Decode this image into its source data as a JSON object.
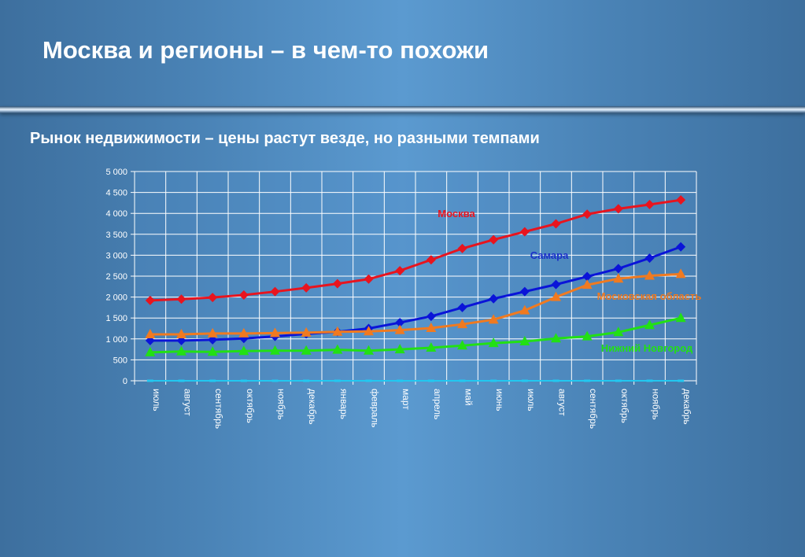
{
  "slide": {
    "title": "Москва и регионы – в чем-то похожи",
    "subtitle": "Рынок недвижимости – цены растут везде, но разными темпами"
  },
  "chart_data": {
    "type": "line",
    "categories": [
      "июль",
      "август",
      "сентябрь",
      "октябрь",
      "ноябрь",
      "декабрь",
      "январь",
      "февраль",
      "март",
      "апрель",
      "май",
      "июнь",
      "июль",
      "август",
      "сентябрь",
      "октябрь",
      "ноябрь",
      "декабрь"
    ],
    "ylim": [
      0,
      5000
    ],
    "yticks": [
      0,
      500,
      1000,
      1500,
      2000,
      2500,
      3000,
      3500,
      4000,
      4500,
      5000
    ],
    "ytick_labels": [
      "0",
      "500",
      "1 000",
      "1 500",
      "2 000",
      "2 500",
      "3 000",
      "3 500",
      "4 000",
      "4 500",
      "5 000"
    ],
    "grid": true,
    "series": [
      {
        "name": "Москва",
        "color": "#e8141e",
        "marker": "diamond",
        "values": [
          1920,
          1950,
          1990,
          2050,
          2130,
          2220,
          2320,
          2430,
          2630,
          2890,
          3160,
          3370,
          3560,
          3750,
          3980,
          4110,
          4210,
          4320
        ]
      },
      {
        "name": "Самара",
        "color": "#0a14d8",
        "marker": "diamond",
        "values": [
          960,
          960,
          980,
          1010,
          1060,
          1120,
          1170,
          1250,
          1390,
          1540,
          1750,
          1960,
          2130,
          2300,
          2490,
          2680,
          2930,
          3200
        ]
      },
      {
        "name": "Московская область",
        "color": "#f07a20",
        "marker": "triangle",
        "values": [
          1110,
          1110,
          1130,
          1130,
          1140,
          1150,
          1170,
          1180,
          1210,
          1260,
          1350,
          1460,
          1680,
          2000,
          2290,
          2440,
          2510,
          2550
        ]
      },
      {
        "name": "Нижний Новгород",
        "color": "#22e014",
        "marker": "triangle",
        "values": [
          680,
          700,
          690,
          710,
          720,
          720,
          740,
          720,
          750,
          790,
          840,
          900,
          940,
          1010,
          1060,
          1160,
          1330,
          1500
        ]
      },
      {
        "name": "",
        "color": "#22c8f0",
        "marker": "dash",
        "values": [
          0,
          0,
          0,
          0,
          0,
          0,
          0,
          0,
          0,
          0,
          0,
          0,
          0,
          0,
          0,
          0,
          0,
          0
        ]
      }
    ],
    "annotations": [
      "Москва",
      "Самара",
      "Московская область",
      "Нижний Новгород"
    ]
  }
}
